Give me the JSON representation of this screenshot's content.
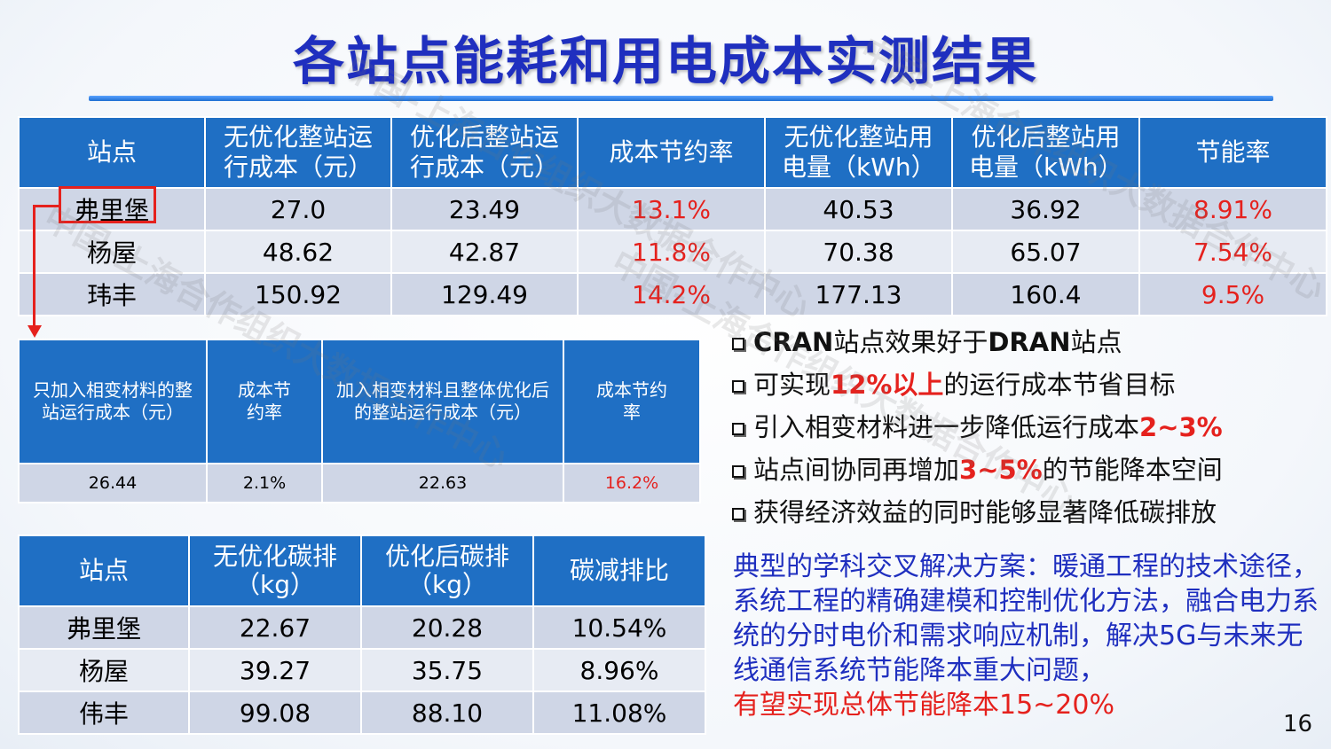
{
  "title": "各站点能耗和用电成本实测结果",
  "table1": {
    "headers": [
      "站点",
      "无优化整站运行成本（元）",
      "优化后整站运行成本（元）",
      "成本节约率",
      "无优化整站用电量（kWh）",
      "优化后整站用电量（kWh）",
      "节能率"
    ],
    "rows": [
      [
        "弗里堡",
        "27.0",
        "23.49",
        "13.1%",
        "40.53",
        "36.92",
        "8.91%"
      ],
      [
        "杨屋",
        "48.62",
        "42.87",
        "11.8%",
        "70.38",
        "65.07",
        "7.54%"
      ],
      [
        "玮丰",
        "150.92",
        "129.49",
        "14.2%",
        "177.13",
        "160.4",
        "9.5%"
      ]
    ]
  },
  "table2": {
    "headers": [
      "只加入相变材料的整站运行成本（元）",
      "成本节约率",
      "加入相变材料且整体优化后的整站运行成本（元）",
      "成本节约率"
    ],
    "row": [
      "26.44",
      "2.1%",
      "22.63",
      "16.2%"
    ]
  },
  "table3": {
    "headers": [
      "站点",
      "无优化碳排（kg）",
      "优化后碳排（kg）",
      "碳减排比"
    ],
    "rows": [
      [
        "弗里堡",
        "22.67",
        "20.28",
        "10.54%"
      ],
      [
        "杨屋",
        "39.27",
        "35.75",
        "8.96%"
      ],
      [
        "伟丰",
        "99.08",
        "88.10",
        "11.08%"
      ]
    ]
  },
  "bullets": {
    "b1": {
      "a": "CRAN",
      "b": "站点效果好于",
      "c": "DRAN",
      "d": "站点"
    },
    "b2": {
      "a": "可实现",
      "b": "12%以上",
      "c": "的运行成本节省目标"
    },
    "b3": {
      "a": "引入相变材料进一步降低运行成本",
      "b": "2~3%"
    },
    "b4": {
      "a": "站点间协同再增加",
      "b": "3~5%",
      "c": "的节能降本空间"
    },
    "b5": {
      "a": "获得经济效益的同时能够显著降低碳排放"
    }
  },
  "summary": {
    "text": "典型的学科交叉解决方案：暖通工程的技术途径，系统工程的精确建模和控制优化方法，融合电力系统的分时电价和需求响应机制，解决5G与未来无线通信系统节能降本重大问题，",
    "last": "有望实现总体节能降本15~20%"
  },
  "page_number": "16",
  "watermark": "中国-上海合作组织大数据合作中心",
  "colors": {
    "header_blue": "#1f6fc4",
    "title_blue": "#1f2fbf",
    "highlight_red": "#e5211d"
  }
}
